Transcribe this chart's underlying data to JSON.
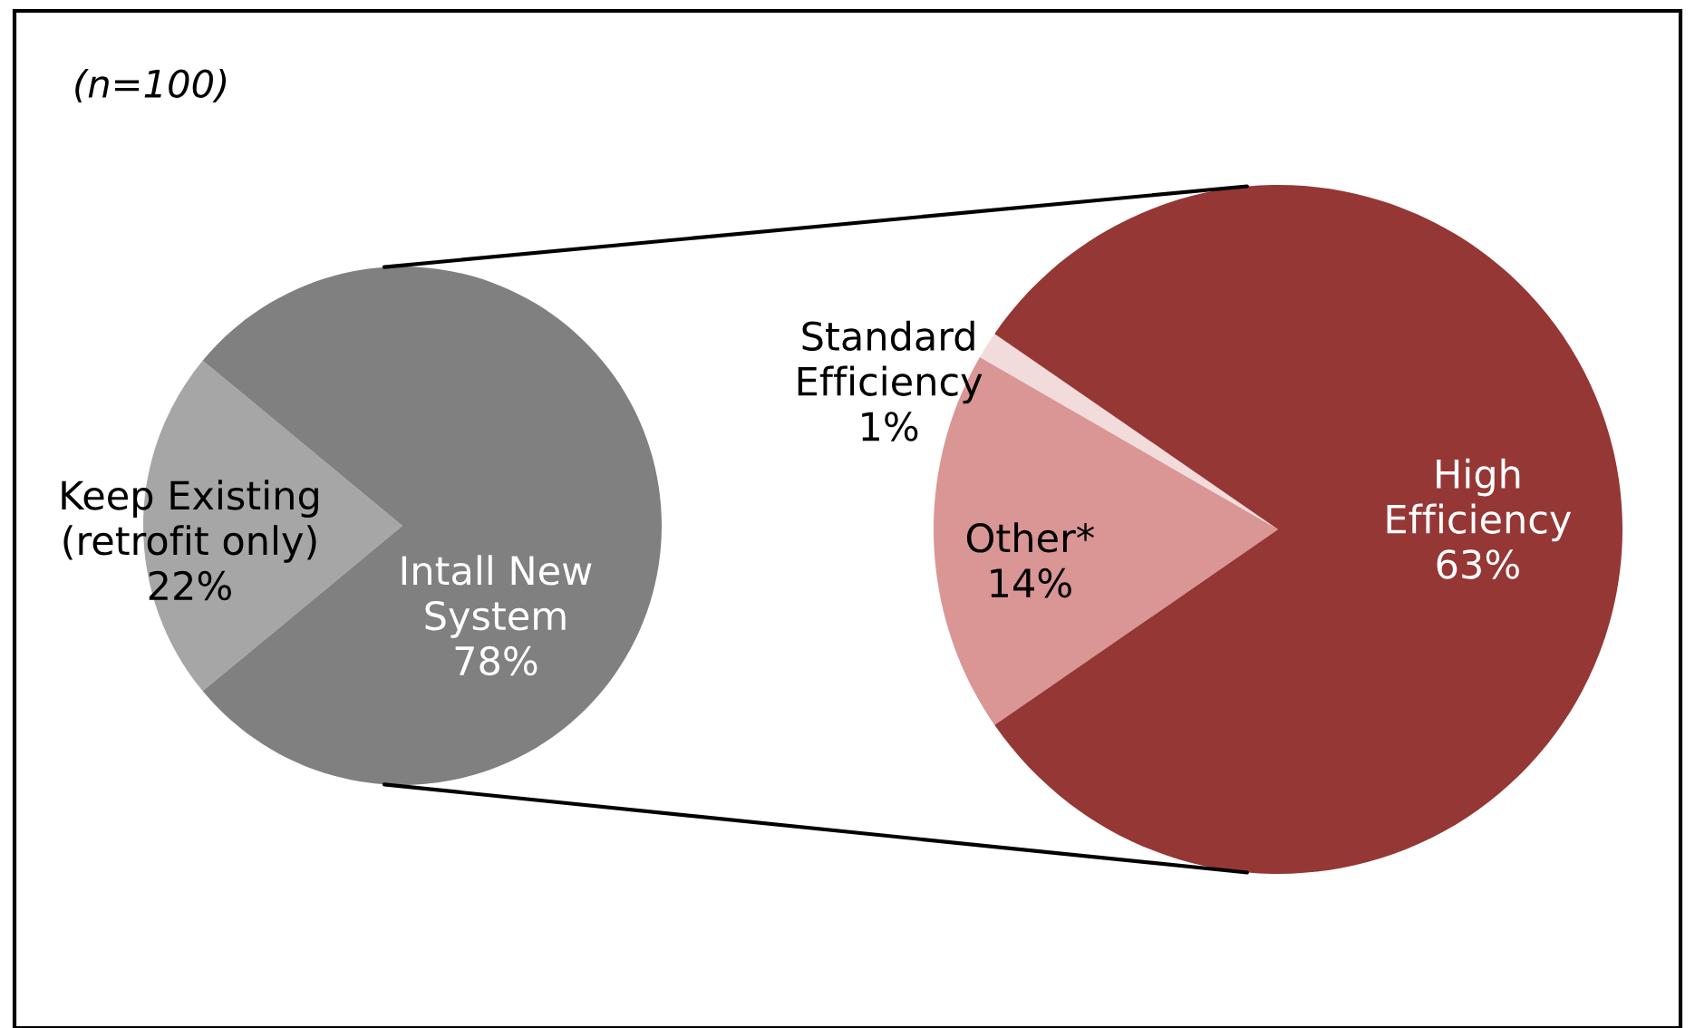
{
  "chart_data": [
    {
      "type": "pie",
      "annotations": [
        "(n=100)"
      ],
      "categories": [
        "Keep Existing\n(retrofit only)",
        "Intall New\nSystem"
      ],
      "values": [
        22,
        78
      ],
      "value_labels": [
        "22%",
        "78%"
      ],
      "colors": [
        "#a6a6a6",
        "#808080"
      ]
    },
    {
      "type": "pie",
      "categories": [
        "Standard\nEfficiency",
        "Other*",
        "High\nEfficiency"
      ],
      "values": [
        1,
        14,
        63
      ],
      "value_labels": [
        "1%",
        "14%",
        "63%"
      ],
      "colors": [
        "#f2dcdb",
        "#d99694",
        "#953735"
      ]
    }
  ]
}
